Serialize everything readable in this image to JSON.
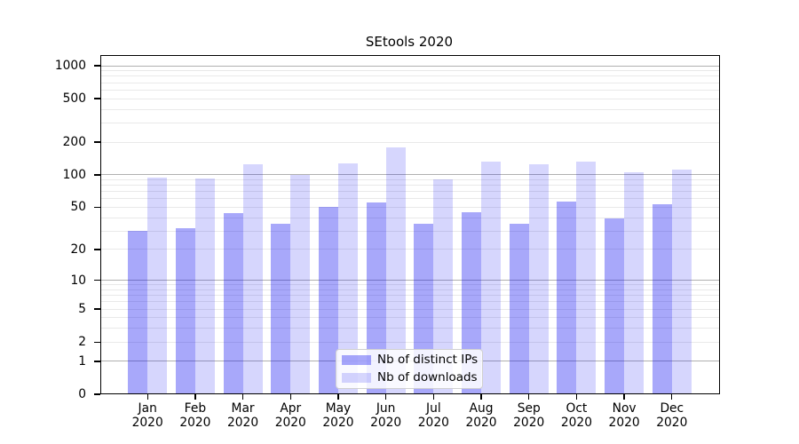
{
  "chart_data": {
    "type": "bar",
    "title": "SEtools 2020",
    "categories": [
      "Jan 2020",
      "Feb 2020",
      "Mar 2020",
      "Apr 2020",
      "May 2020",
      "Jun 2020",
      "Jul 2020",
      "Aug 2020",
      "Sep 2020",
      "Oct 2020",
      "Nov 2020",
      "Dec 2020"
    ],
    "series": [
      {
        "name": "Nb of distinct IPs",
        "color": "rgba(0,0,240,0.34)",
        "values": [
          30,
          32,
          44,
          35,
          50,
          55,
          35,
          45,
          35,
          57,
          39,
          53
        ]
      },
      {
        "name": "Nb of downloads",
        "color": "rgba(0,0,240,0.16)",
        "values": [
          95,
          92,
          125,
          100,
          128,
          178,
          90,
          132,
          124,
          133,
          106,
          111
        ]
      }
    ],
    "xlabel": "",
    "ylabel": "",
    "yscale": "log1p",
    "yticks": [
      0,
      1,
      2,
      5,
      10,
      20,
      50,
      100,
      200,
      500,
      1000
    ],
    "ylim": [
      0,
      1240
    ],
    "grid": true,
    "major_grid_values": [
      1,
      10,
      100,
      1000
    ],
    "legend_position": "lower center",
    "colors": {
      "bar_ips": "#aaaaf6",
      "bar_downloads": "#d9d9f9",
      "grid_minor": "#e9e9e9",
      "grid_major": "#b0b0b0",
      "spine": "#000000",
      "text": "#000000",
      "legend_border": "#d0d0d0",
      "legend_background": "rgba(255,255,255,0.85)"
    }
  }
}
